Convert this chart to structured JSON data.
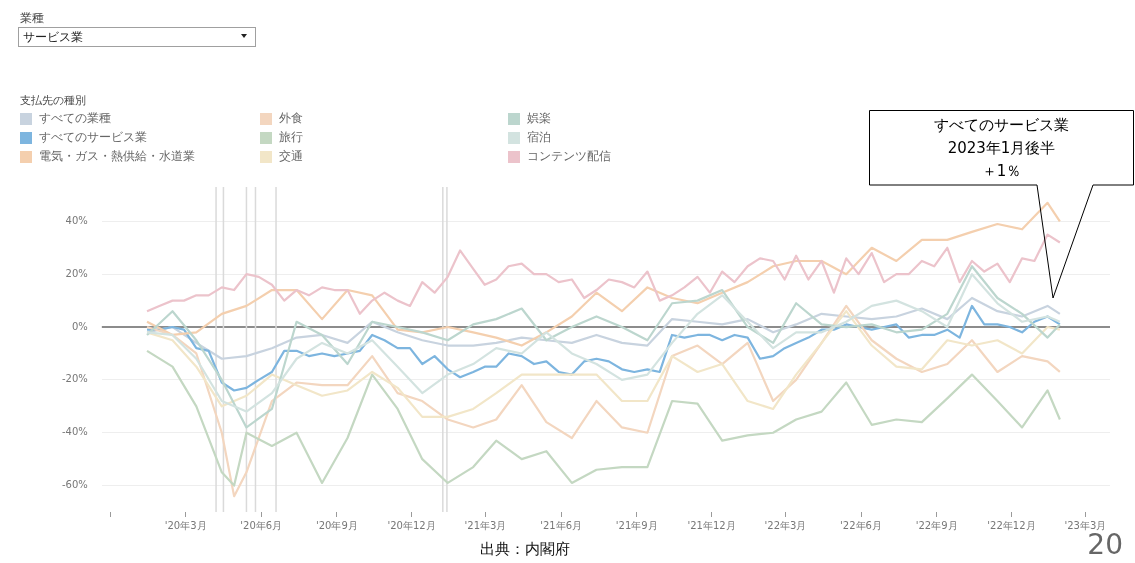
{
  "chart_data": {
    "type": "line",
    "legend_title": "支払先の種別",
    "legend": "top left",
    "grid": "y",
    "xlim": [
      "2019-11-20",
      "2023-03-31"
    ],
    "xticks": [
      {
        "value": "2019-12-01",
        "label": null
      },
      {
        "value": "2020-03-01",
        "label": "'20年3月"
      },
      {
        "value": "2020-06-01",
        "label": "'20年6月"
      },
      {
        "value": "2020-09-01",
        "label": "'20年9月"
      },
      {
        "value": "2020-12-01",
        "label": "'20年12月"
      },
      {
        "value": "2021-03-01",
        "label": "'21年3月"
      },
      {
        "value": "2021-06-01",
        "label": "'21年6月"
      },
      {
        "value": "2021-09-01",
        "label": "'21年9月"
      },
      {
        "value": "2021-12-01",
        "label": "'21年12月"
      },
      {
        "value": "2022-03-01",
        "label": "'22年3月"
      },
      {
        "value": "2022-06-01",
        "label": "'22年6月"
      },
      {
        "value": "2022-09-01",
        "label": "'22年9月"
      },
      {
        "value": "2022-12-01",
        "label": "'22年12月"
      },
      {
        "value": "2023-03-01",
        "label": "'23年3月"
      }
    ],
    "ylim": [
      -70,
      53
    ],
    "yticks": [
      {
        "value": -60,
        "label": "-60%"
      },
      {
        "value": -40,
        "label": "-40%"
      },
      {
        "value": -20,
        "label": "-20%"
      },
      {
        "value": 0,
        "label": "0%"
      },
      {
        "value": 20,
        "label": "20%"
      },
      {
        "value": 40,
        "label": "40%"
      }
    ],
    "ref_lines": [
      {
        "axis": "y",
        "value": 0,
        "color": "#8c8c8c"
      },
      {
        "axis": "x",
        "value": "2020-04-07",
        "color": "#dadada"
      },
      {
        "axis": "x",
        "value": "2020-04-16",
        "color": "#dadada"
      },
      {
        "axis": "x",
        "value": "2020-05-14",
        "color": "#dadada"
      },
      {
        "axis": "x",
        "value": "2020-05-25",
        "color": "#dadada"
      },
      {
        "axis": "x",
        "value": "2020-06-19",
        "color": "#dadada"
      },
      {
        "axis": "x",
        "value": "2021-01-08",
        "color": "#dadada"
      },
      {
        "axis": "x",
        "value": "2021-01-13",
        "color": "#dadada"
      }
    ],
    "annotations": [
      "業種",
      "サービス業",
      "すべてのサービス業",
      "2023年1月後半",
      "＋1％",
      "出典：内閣府",
      "20"
    ],
    "series": [
      {
        "name": "すべての業種",
        "color": "#c8d3df",
        "x": [
          "2020-01-14",
          "2020-02-14",
          "2020-03-14",
          "2020-04-14",
          "2020-05-14",
          "2020-06-14",
          "2020-07-14",
          "2020-08-14",
          "2020-09-14",
          "2020-10-14",
          "2020-11-14",
          "2020-12-14",
          "2021-01-14",
          "2021-02-14",
          "2021-03-14",
          "2021-04-14",
          "2021-05-14",
          "2021-06-14",
          "2021-07-14",
          "2021-08-14",
          "2021-09-14",
          "2021-10-14",
          "2021-11-14",
          "2021-12-14",
          "2022-01-14",
          "2022-02-14",
          "2022-03-14",
          "2022-04-14",
          "2022-05-14",
          "2022-06-14",
          "2022-07-14",
          "2022-08-14",
          "2022-09-14",
          "2022-10-14",
          "2022-11-14",
          "2022-12-14",
          "2023-01-14",
          "2023-01-29"
        ],
        "values": [
          -2,
          0,
          -6,
          -12,
          -11,
          -8,
          -4,
          -3,
          -6,
          2,
          -2,
          -5,
          -7,
          -7,
          -6,
          -4,
          -5,
          -6,
          -3,
          -6,
          -7,
          3,
          2,
          1,
          3,
          -2,
          1,
          5,
          4,
          3,
          4,
          7,
          3,
          11,
          6,
          4,
          8,
          5
        ]
      },
      {
        "name": "すべてのサービス業",
        "color": "#7db5df",
        "x": [
          "2020-01-14",
          "2020-01-29",
          "2020-02-14",
          "2020-02-28",
          "2020-03-14",
          "2020-03-29",
          "2020-04-14",
          "2020-04-29",
          "2020-05-14",
          "2020-05-29",
          "2020-06-14",
          "2020-06-29",
          "2020-07-14",
          "2020-07-29",
          "2020-08-14",
          "2020-08-29",
          "2020-09-14",
          "2020-09-29",
          "2020-10-14",
          "2020-10-29",
          "2020-11-14",
          "2020-11-29",
          "2020-12-14",
          "2020-12-29",
          "2021-01-14",
          "2021-01-29",
          "2021-02-14",
          "2021-02-28",
          "2021-03-14",
          "2021-03-29",
          "2021-04-14",
          "2021-04-29",
          "2021-05-14",
          "2021-05-29",
          "2021-06-14",
          "2021-06-29",
          "2021-07-14",
          "2021-07-29",
          "2021-08-14",
          "2021-08-29",
          "2021-09-14",
          "2021-09-29",
          "2021-10-14",
          "2021-10-29",
          "2021-11-14",
          "2021-11-29",
          "2021-12-14",
          "2021-12-29",
          "2022-01-14",
          "2022-01-29",
          "2022-02-14",
          "2022-02-28",
          "2022-03-14",
          "2022-03-29",
          "2022-04-14",
          "2022-04-29",
          "2022-05-14",
          "2022-05-29",
          "2022-06-14",
          "2022-06-29",
          "2022-07-14",
          "2022-07-29",
          "2022-08-14",
          "2022-08-29",
          "2022-09-14",
          "2022-09-29",
          "2022-10-14",
          "2022-10-29",
          "2022-11-14",
          "2022-11-29",
          "2022-12-14",
          "2022-12-29",
          "2023-01-14",
          "2023-01-29"
        ],
        "values": [
          -1,
          -1,
          0,
          -1,
          -8,
          -9,
          -21,
          -24,
          -23,
          -20,
          -17,
          -9,
          -9,
          -11,
          -10,
          -11,
          -10,
          -9,
          -3,
          -5,
          -8,
          -8,
          -14,
          -11,
          -16,
          -19,
          -17,
          -15,
          -15,
          -10,
          -11,
          -14,
          -13,
          -17,
          -18,
          -13,
          -12,
          -13,
          -16,
          -17,
          -16,
          -17,
          -3,
          -4,
          -3,
          -3,
          -5,
          -3,
          -4,
          -12,
          -11,
          -8,
          -6,
          -4,
          -1,
          -1,
          1,
          0,
          -1,
          0,
          1,
          -4,
          -3,
          -3,
          -1,
          -4,
          8,
          1,
          1,
          0,
          -2,
          2,
          4,
          1
        ]
      },
      {
        "name": "電気・ガス・熱供給・水道業",
        "color": "#f4cfae",
        "x": [
          "2020-01-14",
          "2020-02-14",
          "2020-03-14",
          "2020-04-14",
          "2020-05-14",
          "2020-06-14",
          "2020-07-14",
          "2020-08-14",
          "2020-09-14",
          "2020-10-14",
          "2020-11-14",
          "2020-12-14",
          "2021-01-14",
          "2021-02-14",
          "2021-03-14",
          "2021-04-14",
          "2021-05-14",
          "2021-06-14",
          "2021-07-14",
          "2021-08-14",
          "2021-09-14",
          "2021-10-14",
          "2021-11-14",
          "2021-12-14",
          "2022-01-14",
          "2022-02-14",
          "2022-03-14",
          "2022-04-14",
          "2022-05-14",
          "2022-06-14",
          "2022-07-14",
          "2022-08-14",
          "2022-09-14",
          "2022-10-14",
          "2022-11-14",
          "2022-12-14",
          "2023-01-14",
          "2023-01-29"
        ],
        "values": [
          2,
          -3,
          -2,
          5,
          8,
          14,
          14,
          3,
          14,
          12,
          -1,
          -2,
          0,
          -2,
          -4,
          -7,
          -2,
          4,
          13,
          6,
          15,
          11,
          9,
          13,
          17,
          23,
          25,
          25,
          20,
          30,
          25,
          33,
          33,
          36,
          39,
          37,
          47,
          40
        ]
      },
      {
        "name": "外食",
        "color": "#f3d6bf",
        "x": [
          "2020-01-14",
          "2020-02-14",
          "2020-03-14",
          "2020-04-14",
          "2020-04-29",
          "2020-05-14",
          "2020-06-14",
          "2020-07-14",
          "2020-08-14",
          "2020-09-14",
          "2020-10-14",
          "2020-11-14",
          "2020-12-14",
          "2021-01-14",
          "2021-02-14",
          "2021-03-14",
          "2021-04-14",
          "2021-05-14",
          "2021-06-14",
          "2021-07-14",
          "2021-08-14",
          "2021-09-14",
          "2021-10-14",
          "2021-11-14",
          "2021-12-14",
          "2022-01-14",
          "2022-02-14",
          "2022-03-14",
          "2022-04-14",
          "2022-05-14",
          "2022-06-14",
          "2022-07-14",
          "2022-08-14",
          "2022-09-14",
          "2022-10-14",
          "2022-11-14",
          "2022-12-14",
          "2023-01-14",
          "2023-01-29"
        ],
        "values": [
          0,
          -3,
          -10,
          -40,
          -64,
          -55,
          -28,
          -21,
          -22,
          -22,
          -11,
          -25,
          -28,
          -35,
          -38,
          -35,
          -22,
          -36,
          -42,
          -28,
          -38,
          -40,
          -11,
          -7,
          -14,
          -6,
          -28,
          -20,
          -6,
          8,
          -5,
          -12,
          -17,
          -14,
          -5,
          -17,
          -11,
          -13,
          -17
        ]
      },
      {
        "name": "旅行",
        "color": "#c4d8c2",
        "x": [
          "2020-01-14",
          "2020-02-14",
          "2020-03-14",
          "2020-04-14",
          "2020-04-29",
          "2020-05-14",
          "2020-06-14",
          "2020-07-14",
          "2020-08-14",
          "2020-09-14",
          "2020-10-14",
          "2020-11-14",
          "2020-12-14",
          "2021-01-14",
          "2021-02-14",
          "2021-03-14",
          "2021-04-14",
          "2021-05-14",
          "2021-06-14",
          "2021-07-14",
          "2021-08-14",
          "2021-09-14",
          "2021-10-14",
          "2021-11-14",
          "2021-12-14",
          "2022-01-14",
          "2022-02-14",
          "2022-03-14",
          "2022-04-14",
          "2022-05-14",
          "2022-06-14",
          "2022-07-14",
          "2022-08-14",
          "2022-09-14",
          "2022-10-14",
          "2022-11-14",
          "2022-12-14",
          "2023-01-14",
          "2023-01-29"
        ],
        "values": [
          -9,
          -15,
          -30,
          -55,
          -60,
          -40,
          -45,
          -40,
          -59,
          -42,
          -18,
          -31,
          -50,
          -59,
          -53,
          -43,
          -50,
          -47,
          -59,
          -54,
          -53,
          -53,
          -28,
          -29,
          -43,
          -41,
          -40,
          -35,
          -32,
          -21,
          -37,
          -35,
          -36,
          -27,
          -18,
          -28,
          -38,
          -24,
          -35
        ]
      },
      {
        "name": "交通",
        "color": "#f2e6c8",
        "x": [
          "2020-01-14",
          "2020-02-14",
          "2020-03-14",
          "2020-04-14",
          "2020-05-14",
          "2020-06-14",
          "2020-07-14",
          "2020-08-14",
          "2020-09-14",
          "2020-10-14",
          "2020-11-14",
          "2020-12-14",
          "2021-01-14",
          "2021-02-14",
          "2021-03-14",
          "2021-04-14",
          "2021-05-14",
          "2021-06-14",
          "2021-07-14",
          "2021-08-14",
          "2021-09-14",
          "2021-10-14",
          "2021-11-14",
          "2021-12-14",
          "2022-01-14",
          "2022-02-14",
          "2022-03-14",
          "2022-04-14",
          "2022-05-14",
          "2022-06-14",
          "2022-07-14",
          "2022-08-14",
          "2022-09-14",
          "2022-10-14",
          "2022-11-14",
          "2022-12-14",
          "2023-01-14",
          "2023-01-29"
        ],
        "values": [
          -2,
          -5,
          -15,
          -30,
          -26,
          -18,
          -22,
          -26,
          -24,
          -17,
          -23,
          -34,
          -34,
          -31,
          -25,
          -18,
          -18,
          -18,
          -18,
          -28,
          -28,
          -11,
          -17,
          -14,
          -28,
          -31,
          -18,
          -6,
          6,
          -7,
          -15,
          -16,
          -5,
          -7,
          -5,
          -10,
          0,
          -1
        ]
      },
      {
        "name": "娯楽",
        "color": "#bcd6ce",
        "x": [
          "2020-01-14",
          "2020-02-14",
          "2020-03-14",
          "2020-04-14",
          "2020-05-14",
          "2020-06-14",
          "2020-07-14",
          "2020-08-14",
          "2020-09-14",
          "2020-10-14",
          "2020-11-14",
          "2020-12-14",
          "2021-01-14",
          "2021-02-14",
          "2021-03-14",
          "2021-04-14",
          "2021-05-14",
          "2021-06-14",
          "2021-07-14",
          "2021-08-14",
          "2021-09-14",
          "2021-10-14",
          "2021-11-14",
          "2021-12-14",
          "2022-01-14",
          "2022-02-14",
          "2022-03-14",
          "2022-04-14",
          "2022-05-14",
          "2022-06-14",
          "2022-07-14",
          "2022-08-14",
          "2022-09-14",
          "2022-10-14",
          "2022-11-14",
          "2022-12-14",
          "2023-01-14",
          "2023-01-29"
        ],
        "values": [
          -3,
          6,
          -5,
          -20,
          -38,
          -31,
          2,
          -3,
          -14,
          2,
          0,
          -2,
          -5,
          1,
          3,
          7,
          -5,
          0,
          4,
          0,
          -5,
          9,
          10,
          14,
          0,
          -6,
          9,
          1,
          0,
          1,
          -2,
          -1,
          5,
          23,
          11,
          5,
          -4,
          1
        ]
      },
      {
        "name": "宿泊",
        "color": "#d3e3e0",
        "x": [
          "2020-01-14",
          "2020-02-14",
          "2020-03-14",
          "2020-04-14",
          "2020-05-14",
          "2020-06-14",
          "2020-07-14",
          "2020-08-14",
          "2020-09-14",
          "2020-10-14",
          "2020-11-14",
          "2020-12-14",
          "2021-01-14",
          "2021-02-14",
          "2021-03-14",
          "2021-04-14",
          "2021-05-14",
          "2021-06-14",
          "2021-07-14",
          "2021-08-14",
          "2021-09-14",
          "2021-10-14",
          "2021-11-14",
          "2021-12-14",
          "2022-01-14",
          "2022-02-14",
          "2022-03-14",
          "2022-04-14",
          "2022-05-14",
          "2022-06-14",
          "2022-07-14",
          "2022-08-14",
          "2022-09-14",
          "2022-10-14",
          "2022-11-14",
          "2022-12-14",
          "2023-01-14",
          "2023-01-29"
        ],
        "values": [
          -2,
          -3,
          -12,
          -28,
          -32,
          -25,
          -12,
          -6,
          -10,
          -5,
          -15,
          -25,
          -18,
          -14,
          -8,
          -10,
          -2,
          -10,
          -14,
          -20,
          -18,
          -6,
          5,
          12,
          2,
          -8,
          -2,
          -2,
          2,
          8,
          10,
          6,
          0,
          20,
          9,
          2,
          4,
          2
        ]
      },
      {
        "name": "コンテンツ配信",
        "color": "#ecc3cb",
        "x": [
          "2020-01-14",
          "2020-01-29",
          "2020-02-14",
          "2020-02-28",
          "2020-03-14",
          "2020-03-29",
          "2020-04-14",
          "2020-04-29",
          "2020-05-14",
          "2020-05-29",
          "2020-06-14",
          "2020-06-29",
          "2020-07-14",
          "2020-07-29",
          "2020-08-14",
          "2020-08-29",
          "2020-09-14",
          "2020-09-29",
          "2020-10-14",
          "2020-10-29",
          "2020-11-14",
          "2020-11-29",
          "2020-12-14",
          "2020-12-29",
          "2021-01-14",
          "2021-01-29",
          "2021-02-14",
          "2021-02-28",
          "2021-03-14",
          "2021-03-29",
          "2021-04-14",
          "2021-04-29",
          "2021-05-14",
          "2021-05-29",
          "2021-06-14",
          "2021-06-29",
          "2021-07-14",
          "2021-07-29",
          "2021-08-14",
          "2021-08-29",
          "2021-09-14",
          "2021-09-29",
          "2021-10-14",
          "2021-10-29",
          "2021-11-14",
          "2021-11-29",
          "2021-12-14",
          "2021-12-29",
          "2022-01-14",
          "2022-01-29",
          "2022-02-14",
          "2022-02-28",
          "2022-03-14",
          "2022-03-29",
          "2022-04-14",
          "2022-04-29",
          "2022-05-14",
          "2022-05-29",
          "2022-06-14",
          "2022-06-29",
          "2022-07-14",
          "2022-07-29",
          "2022-08-14",
          "2022-08-29",
          "2022-09-14",
          "2022-09-29",
          "2022-10-14",
          "2022-10-29",
          "2022-11-14",
          "2022-11-29",
          "2022-12-14",
          "2022-12-29",
          "2023-01-14",
          "2023-01-29"
        ],
        "values": [
          6,
          8,
          10,
          10,
          12,
          12,
          15,
          14,
          20,
          19,
          16,
          10,
          14,
          12,
          15,
          14,
          14,
          5,
          10,
          13,
          10,
          8,
          17,
          13,
          19,
          29,
          22,
          16,
          18,
          23,
          24,
          20,
          20,
          17,
          18,
          11,
          14,
          18,
          17,
          15,
          21,
          10,
          12,
          15,
          19,
          13,
          21,
          17,
          23,
          26,
          25,
          18,
          27,
          18,
          25,
          13,
          26,
          20,
          28,
          17,
          20,
          20,
          25,
          23,
          30,
          17,
          25,
          21,
          24,
          17,
          26,
          25,
          35,
          32
        ]
      }
    ]
  }
}
